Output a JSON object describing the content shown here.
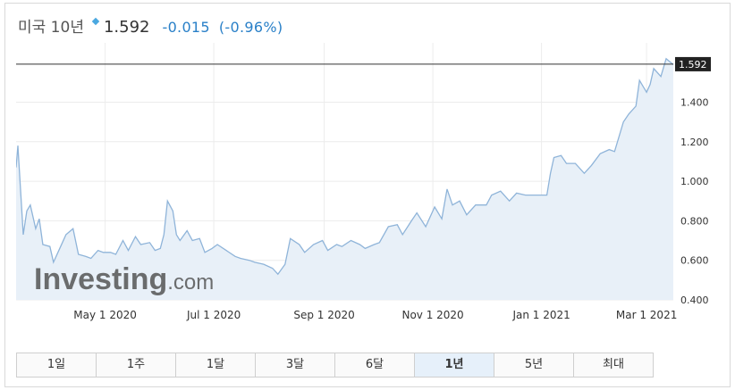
{
  "header": {
    "title": "미국 10년",
    "price": "1.592",
    "change": "-0.015",
    "change_pct": "(-0.96%)"
  },
  "current_value_label": "1.592",
  "watermark": {
    "brand": "Investing",
    "suffix": ".com"
  },
  "tabs": [
    {
      "label": "1일",
      "active": false
    },
    {
      "label": "1주",
      "active": false
    },
    {
      "label": "1달",
      "active": false
    },
    {
      "label": "3달",
      "active": false
    },
    {
      "label": "6달",
      "active": false
    },
    {
      "label": "1년",
      "active": true
    },
    {
      "label": "5년",
      "active": false
    },
    {
      "label": "최대",
      "active": false
    }
  ],
  "colors": {
    "line": "#8fb4d9",
    "fill": "#e8f0f8",
    "change": "#2a80c8",
    "label_bg": "#222222"
  },
  "chart_data": {
    "type": "area",
    "title": "",
    "xlabel": "",
    "ylabel": "",
    "ylim": [
      0.4,
      1.7
    ],
    "xlim": [
      "2020-03-12",
      "2021-03-16"
    ],
    "yticks": [
      {
        "value": 0.4,
        "label": "0.400"
      },
      {
        "value": 0.6,
        "label": "0.600"
      },
      {
        "value": 0.8,
        "label": "0.800"
      },
      {
        "value": 1.0,
        "label": "1.000"
      },
      {
        "value": 1.2,
        "label": "1.200"
      },
      {
        "value": 1.4,
        "label": "1.400"
      }
    ],
    "xticks": [
      {
        "date": "2020-05-01",
        "label": "May 1 2020"
      },
      {
        "date": "2020-07-01",
        "label": "Jul 1 2020"
      },
      {
        "date": "2020-09-01",
        "label": "Sep 1 2020"
      },
      {
        "date": "2020-11-01",
        "label": "Nov 1 2020"
      },
      {
        "date": "2021-01-01",
        "label": "Jan 1 2021"
      },
      {
        "date": "2021-03-01",
        "label": "Mar 1 2021"
      }
    ],
    "reference_line": 1.592,
    "x": [
      "2020-03-12",
      "2020-03-13",
      "2020-03-16",
      "2020-03-18",
      "2020-03-20",
      "2020-03-23",
      "2020-03-25",
      "2020-03-27",
      "2020-03-31",
      "2020-04-02",
      "2020-04-06",
      "2020-04-09",
      "2020-04-13",
      "2020-04-16",
      "2020-04-20",
      "2020-04-23",
      "2020-04-27",
      "2020-04-30",
      "2020-05-04",
      "2020-05-07",
      "2020-05-11",
      "2020-05-14",
      "2020-05-18",
      "2020-05-21",
      "2020-05-26",
      "2020-05-29",
      "2020-06-01",
      "2020-06-03",
      "2020-06-05",
      "2020-06-08",
      "2020-06-10",
      "2020-06-12",
      "2020-06-16",
      "2020-06-19",
      "2020-06-23",
      "2020-06-26",
      "2020-06-30",
      "2020-07-03",
      "2020-07-08",
      "2020-07-13",
      "2020-07-16",
      "2020-07-21",
      "2020-07-24",
      "2020-07-29",
      "2020-08-03",
      "2020-08-06",
      "2020-08-10",
      "2020-08-13",
      "2020-08-18",
      "2020-08-21",
      "2020-08-26",
      "2020-08-31",
      "2020-09-03",
      "2020-09-08",
      "2020-09-11",
      "2020-09-16",
      "2020-09-21",
      "2020-09-24",
      "2020-09-29",
      "2020-10-02",
      "2020-10-07",
      "2020-10-12",
      "2020-10-15",
      "2020-10-20",
      "2020-10-23",
      "2020-10-28",
      "2020-11-02",
      "2020-11-06",
      "2020-11-09",
      "2020-11-12",
      "2020-11-16",
      "2020-11-20",
      "2020-11-25",
      "2020-12-01",
      "2020-12-04",
      "2020-12-09",
      "2020-12-14",
      "2020-12-18",
      "2020-12-23",
      "2020-12-29",
      "2021-01-04",
      "2021-01-06",
      "2021-01-08",
      "2021-01-12",
      "2021-01-15",
      "2021-01-20",
      "2021-01-25",
      "2021-01-29",
      "2021-02-03",
      "2021-02-08",
      "2021-02-11",
      "2021-02-16",
      "2021-02-19",
      "2021-02-23",
      "2021-02-25",
      "2021-03-01",
      "2021-03-03",
      "2021-03-05",
      "2021-03-09",
      "2021-03-12",
      "2021-03-16"
    ],
    "y": [
      1.07,
      1.18,
      0.73,
      0.85,
      0.88,
      0.76,
      0.81,
      0.68,
      0.67,
      0.59,
      0.67,
      0.73,
      0.76,
      0.63,
      0.62,
      0.61,
      0.65,
      0.64,
      0.64,
      0.63,
      0.7,
      0.65,
      0.72,
      0.68,
      0.69,
      0.65,
      0.66,
      0.73,
      0.9,
      0.85,
      0.73,
      0.7,
      0.75,
      0.7,
      0.71,
      0.64,
      0.66,
      0.68,
      0.65,
      0.62,
      0.61,
      0.6,
      0.59,
      0.58,
      0.56,
      0.53,
      0.58,
      0.71,
      0.68,
      0.64,
      0.68,
      0.7,
      0.65,
      0.68,
      0.67,
      0.7,
      0.68,
      0.66,
      0.68,
      0.69,
      0.77,
      0.78,
      0.73,
      0.8,
      0.84,
      0.77,
      0.87,
      0.81,
      0.96,
      0.88,
      0.9,
      0.83,
      0.88,
      0.88,
      0.93,
      0.95,
      0.9,
      0.94,
      0.93,
      0.93,
      0.93,
      1.04,
      1.12,
      1.13,
      1.09,
      1.09,
      1.04,
      1.08,
      1.14,
      1.16,
      1.15,
      1.3,
      1.34,
      1.38,
      1.51,
      1.45,
      1.49,
      1.57,
      1.53,
      1.62,
      1.59
    ]
  }
}
